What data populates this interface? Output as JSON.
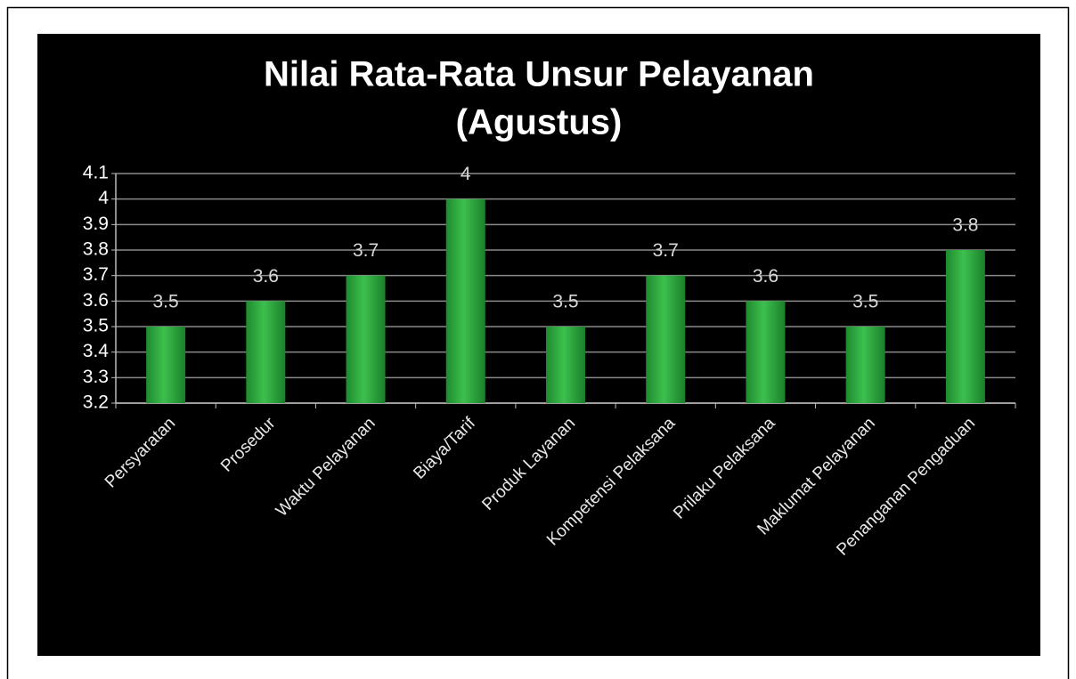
{
  "chart_data": {
    "type": "bar",
    "title": [
      "Nilai Rata-Rata Unsur Pelayanan",
      "(Agustus)"
    ],
    "categories": [
      "Persyaratan",
      "Prosedur",
      "Waktu Pelayanan",
      "Biaya/Tarif",
      "Produk Layanan",
      "Kompetensi Pelaksana",
      "Prilaku Pelaksana",
      "Maklumat Pelayanan",
      "Penanganan Pengaduan"
    ],
    "values": [
      3.5,
      3.6,
      3.7,
      4,
      3.5,
      3.7,
      3.6,
      3.5,
      3.8
    ],
    "color": "#2aa83c",
    "ylim": [
      3.2,
      4.1
    ],
    "yticks": [
      3.2,
      3.3,
      3.4,
      3.5,
      3.6,
      3.7,
      3.8,
      3.9,
      4,
      4.1
    ],
    "grid": true
  }
}
